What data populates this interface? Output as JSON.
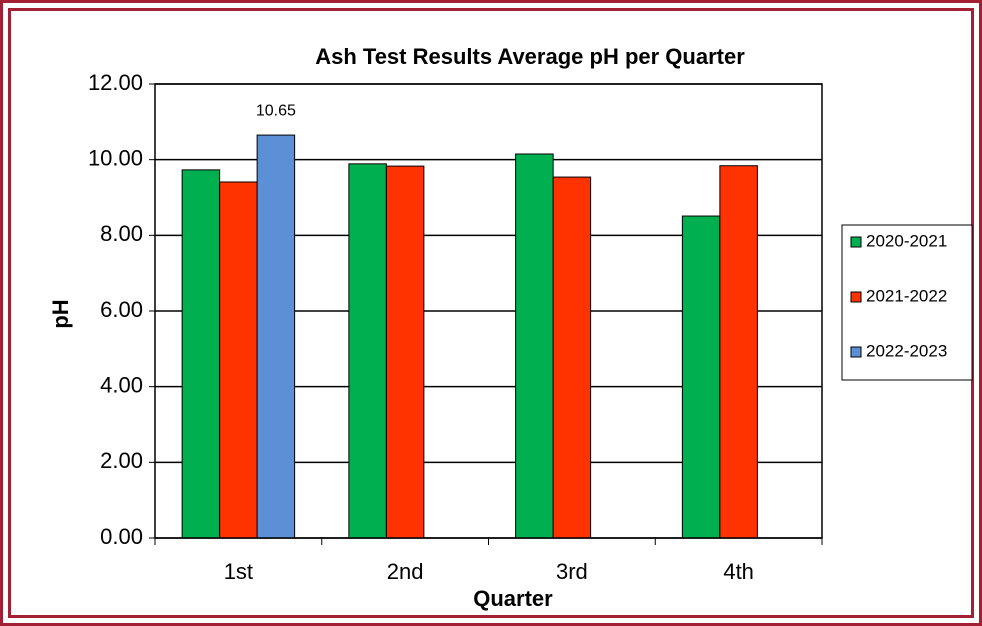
{
  "chart_data": {
    "type": "bar",
    "title": "Ash  Test Results Average pH per Quarter",
    "x_label": "Quarter",
    "y_label": "pH",
    "categories": [
      "1st",
      "2nd",
      "3rd",
      "4th"
    ],
    "series": [
      {
        "name": "2020-2021",
        "color": "#00b050",
        "values": [
          9.73,
          9.89,
          10.15,
          8.51
        ]
      },
      {
        "name": "2021-2022",
        "color": "#ff3300",
        "values": [
          9.41,
          9.83,
          9.54,
          9.84
        ]
      },
      {
        "name": "2022-2023",
        "color": "#5b8fd6",
        "values": [
          10.65,
          null,
          null,
          null
        ],
        "data_labels": true
      }
    ],
    "ylim": [
      0,
      12
    ],
    "yticks": [
      {
        "value": 0,
        "label": "0.00"
      },
      {
        "value": 2,
        "label": "2.00"
      },
      {
        "value": 4,
        "label": "4.00"
      },
      {
        "value": 6,
        "label": "6.00"
      },
      {
        "value": 8,
        "label": "8.00"
      },
      {
        "value": 10,
        "label": "10.00"
      },
      {
        "value": 12,
        "label": "12.00"
      }
    ],
    "grid": true,
    "legend": "right"
  }
}
